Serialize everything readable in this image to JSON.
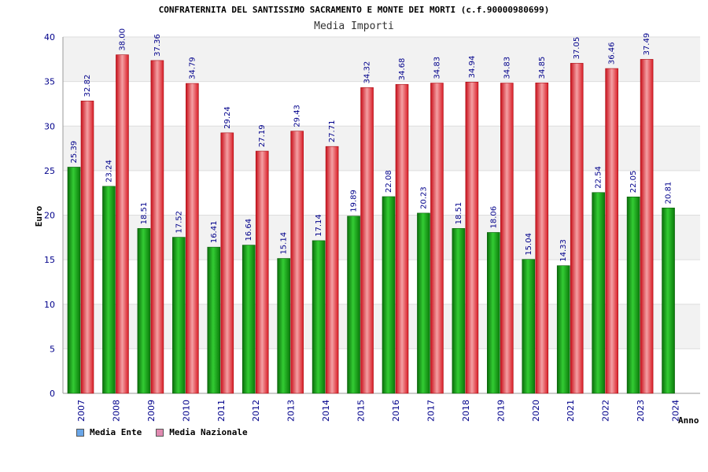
{
  "chart_data": {
    "type": "bar",
    "title": "CONFRATERNITA DEL SANTISSIMO SACRAMENTO E MONTE DEI MORTI (c.f.90000980699)",
    "subtitle": "Media Importi",
    "xlabel": "Anno",
    "ylabel": "Euro",
    "ylim": [
      0,
      40
    ],
    "yticks": [
      0,
      5,
      10,
      15,
      20,
      25,
      30,
      35,
      40
    ],
    "grid": true,
    "legend_position": "bottom-left",
    "categories": [
      "2007",
      "2008",
      "2009",
      "2010",
      "2011",
      "2012",
      "2013",
      "2014",
      "2015",
      "2016",
      "2017",
      "2018",
      "2019",
      "2020",
      "2021",
      "2022",
      "2023",
      "2024"
    ],
    "series": [
      {
        "name": "Media Ente",
        "legend_color": "#6aa6e8",
        "bar_color": "#1fae1f",
        "values": [
          25.39,
          23.24,
          18.51,
          17.52,
          16.41,
          16.64,
          15.14,
          17.14,
          19.89,
          22.08,
          20.23,
          18.51,
          18.06,
          15.04,
          14.33,
          22.54,
          22.05,
          20.81
        ],
        "labels": [
          "25.39",
          "23.24",
          "18.51",
          "17.52",
          "16.41",
          "16.64",
          "15.14",
          "17.14",
          "19.89",
          "22.08",
          "20.23",
          "18.51",
          "18.06",
          "15.04",
          "14.33",
          "22.54",
          "22.05",
          "20.81"
        ]
      },
      {
        "name": "Media Nazionale",
        "legend_color": "#e08ab0",
        "bar_color": "#e8333a",
        "values": [
          32.82,
          38.0,
          37.36,
          34.79,
          29.24,
          27.19,
          29.43,
          27.71,
          34.32,
          34.68,
          34.83,
          34.94,
          34.83,
          34.85,
          37.05,
          36.46,
          37.49,
          null
        ],
        "labels": [
          "32.82",
          "38.00",
          "37.36",
          "34.79",
          "29.24",
          "27.19",
          "29.43",
          "27.71",
          "34.32",
          "34.68",
          "34.83",
          "34.94",
          "34.83",
          "34.85",
          "37.05",
          "36.46",
          "37.49",
          null
        ]
      }
    ]
  }
}
